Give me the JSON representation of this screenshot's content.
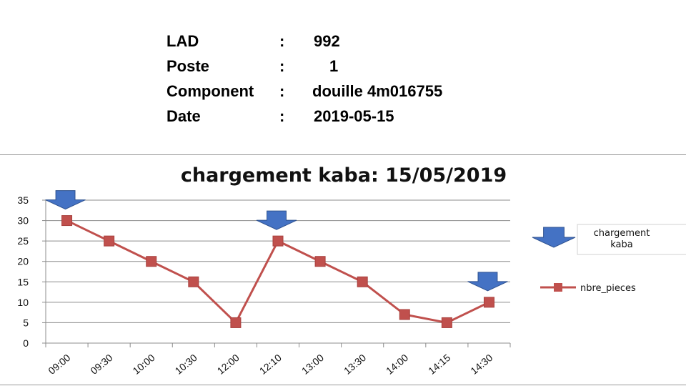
{
  "info": {
    "rows": [
      {
        "label": "LAD",
        "sep": ":",
        "value": "992"
      },
      {
        "label": "Poste",
        "sep": ":",
        "value": "1"
      },
      {
        "label": "Component",
        "sep": ":",
        "value": "douille 4m016755"
      },
      {
        "label": "Date",
        "sep": ":",
        "value": "2019-05-15"
      }
    ]
  },
  "chart_data": {
    "type": "line",
    "title": "chargement kaba: 15/05/2019",
    "categories": [
      "09:00",
      "09:30",
      "10:00",
      "10:30",
      "12:00",
      "12:10",
      "13:00",
      "13:30",
      "14:00",
      "14:15",
      "14:30"
    ],
    "series": [
      {
        "name": "nbre_pieces",
        "values": [
          30,
          25,
          20,
          15,
          5,
          25,
          20,
          15,
          7,
          5,
          10
        ],
        "color": "#c0504d"
      }
    ],
    "ylim": [
      0,
      35
    ],
    "yticks": [
      0,
      5,
      10,
      15,
      20,
      25,
      30,
      35
    ],
    "grid": true,
    "legend": "right",
    "annotations": {
      "marker_icon": "down-arrow-icon",
      "marker_color": "#4472c4",
      "marker_categories": [
        "09:00",
        "12:10",
        "14:30"
      ],
      "legend_marker_label": "chargement kaba"
    }
  }
}
